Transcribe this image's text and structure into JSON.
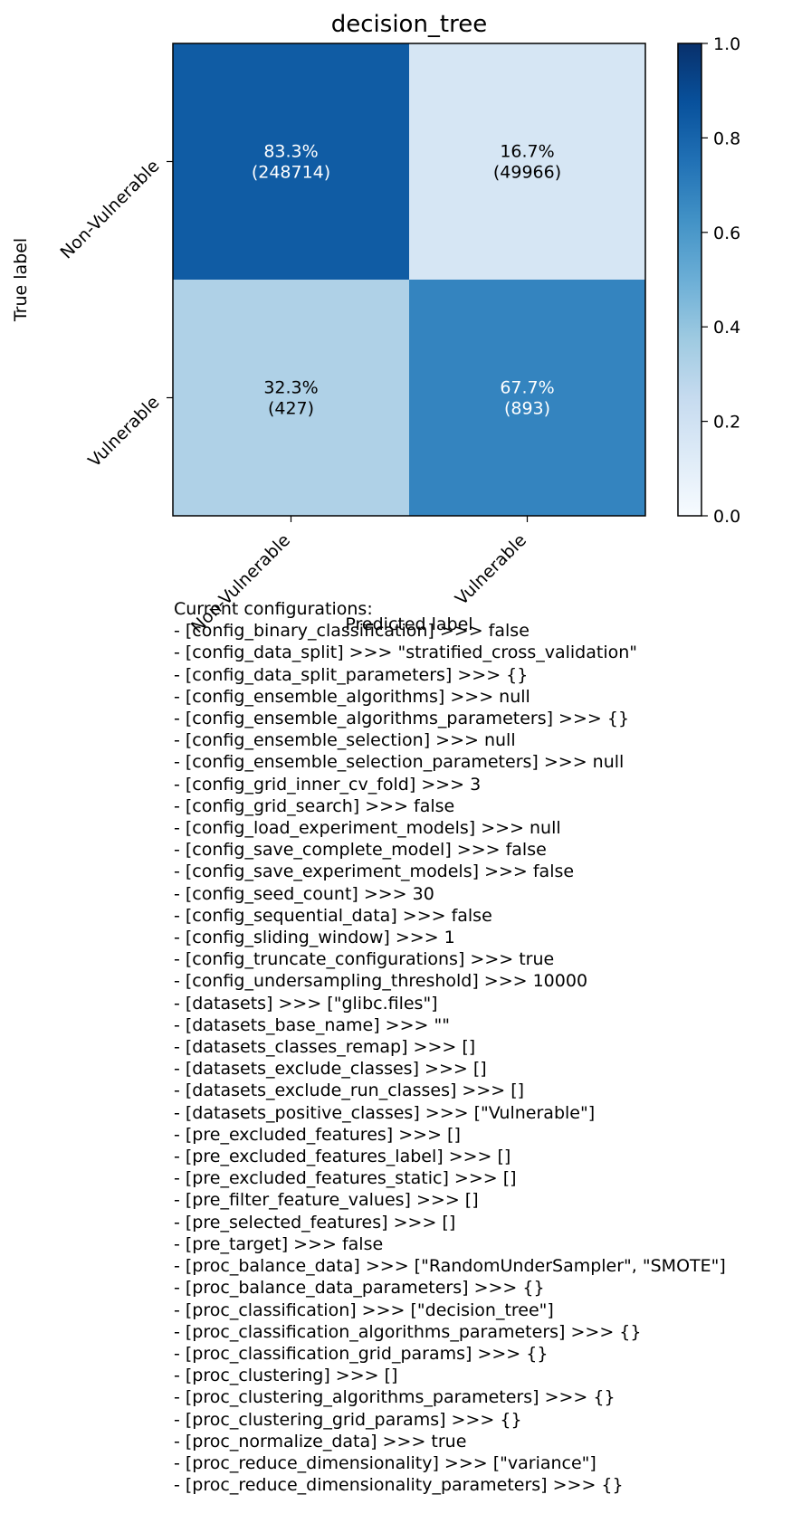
{
  "chart_data": {
    "type": "heatmap",
    "title": "decision_tree",
    "xlabel": "Predicted label",
    "ylabel": "True label",
    "x_categories": [
      "Non-Vulnerable",
      "Vulnerable"
    ],
    "y_categories": [
      "Non-Vulnerable",
      "Vulnerable"
    ],
    "cells": [
      [
        {
          "fraction": 0.833,
          "percent": "83.3%",
          "count": "(248714)"
        },
        {
          "fraction": 0.167,
          "percent": "16.7%",
          "count": "(49966)"
        }
      ],
      [
        {
          "fraction": 0.323,
          "percent": "32.3%",
          "count": "(427)"
        },
        {
          "fraction": 0.677,
          "percent": "67.7%",
          "count": "(893)"
        }
      ]
    ],
    "colorbar": {
      "min": 0.0,
      "max": 1.0,
      "ticks": [
        "0.0",
        "0.2",
        "0.4",
        "0.6",
        "0.8",
        "1.0"
      ]
    },
    "colormap": "Blues",
    "colors": {
      "low": "#f7fbff",
      "high": "#08306b"
    }
  },
  "config_text": [
    "Current configurations:",
    "- [config_binary_classification] >>> false",
    "- [config_data_split] >>> \"stratified_cross_validation\"",
    "- [config_data_split_parameters] >>> {}",
    "- [config_ensemble_algorithms] >>> null",
    "- [config_ensemble_algorithms_parameters] >>> {}",
    "- [config_ensemble_selection] >>> null",
    "- [config_ensemble_selection_parameters] >>> null",
    "- [config_grid_inner_cv_fold] >>> 3",
    "- [config_grid_search] >>> false",
    "- [config_load_experiment_models] >>> null",
    "- [config_save_complete_model] >>> false",
    "- [config_save_experiment_models] >>> false",
    "- [config_seed_count] >>> 30",
    "- [config_sequential_data] >>> false",
    "- [config_sliding_window] >>> 1",
    "- [config_truncate_configurations] >>> true",
    "- [config_undersampling_threshold] >>> 10000",
    "- [datasets] >>> [\"glibc.files\"]",
    "- [datasets_base_name] >>> \"\"",
    "- [datasets_classes_remap] >>> []",
    "- [datasets_exclude_classes] >>> []",
    "- [datasets_exclude_run_classes] >>> []",
    "- [datasets_positive_classes] >>> [\"Vulnerable\"]",
    "- [pre_excluded_features] >>> []",
    "- [pre_excluded_features_label] >>> []",
    "- [pre_excluded_features_static] >>> []",
    "- [pre_filter_feature_values] >>> []",
    "- [pre_selected_features] >>> []",
    "- [pre_target] >>> false",
    "- [proc_balance_data] >>> [\"RandomUnderSampler\", \"SMOTE\"]",
    "- [proc_balance_data_parameters] >>> {}",
    "- [proc_classification] >>> [\"decision_tree\"]",
    "- [proc_classification_algorithms_parameters] >>> {}",
    "- [proc_classification_grid_params] >>> {}",
    "- [proc_clustering] >>> []",
    "- [proc_clustering_algorithms_parameters] >>> {}",
    "- [proc_clustering_grid_params] >>> {}",
    "- [proc_normalize_data] >>> true",
    "- [proc_reduce_dimensionality] >>> [\"variance\"]",
    "- [proc_reduce_dimensionality_parameters] >>> {}"
  ]
}
